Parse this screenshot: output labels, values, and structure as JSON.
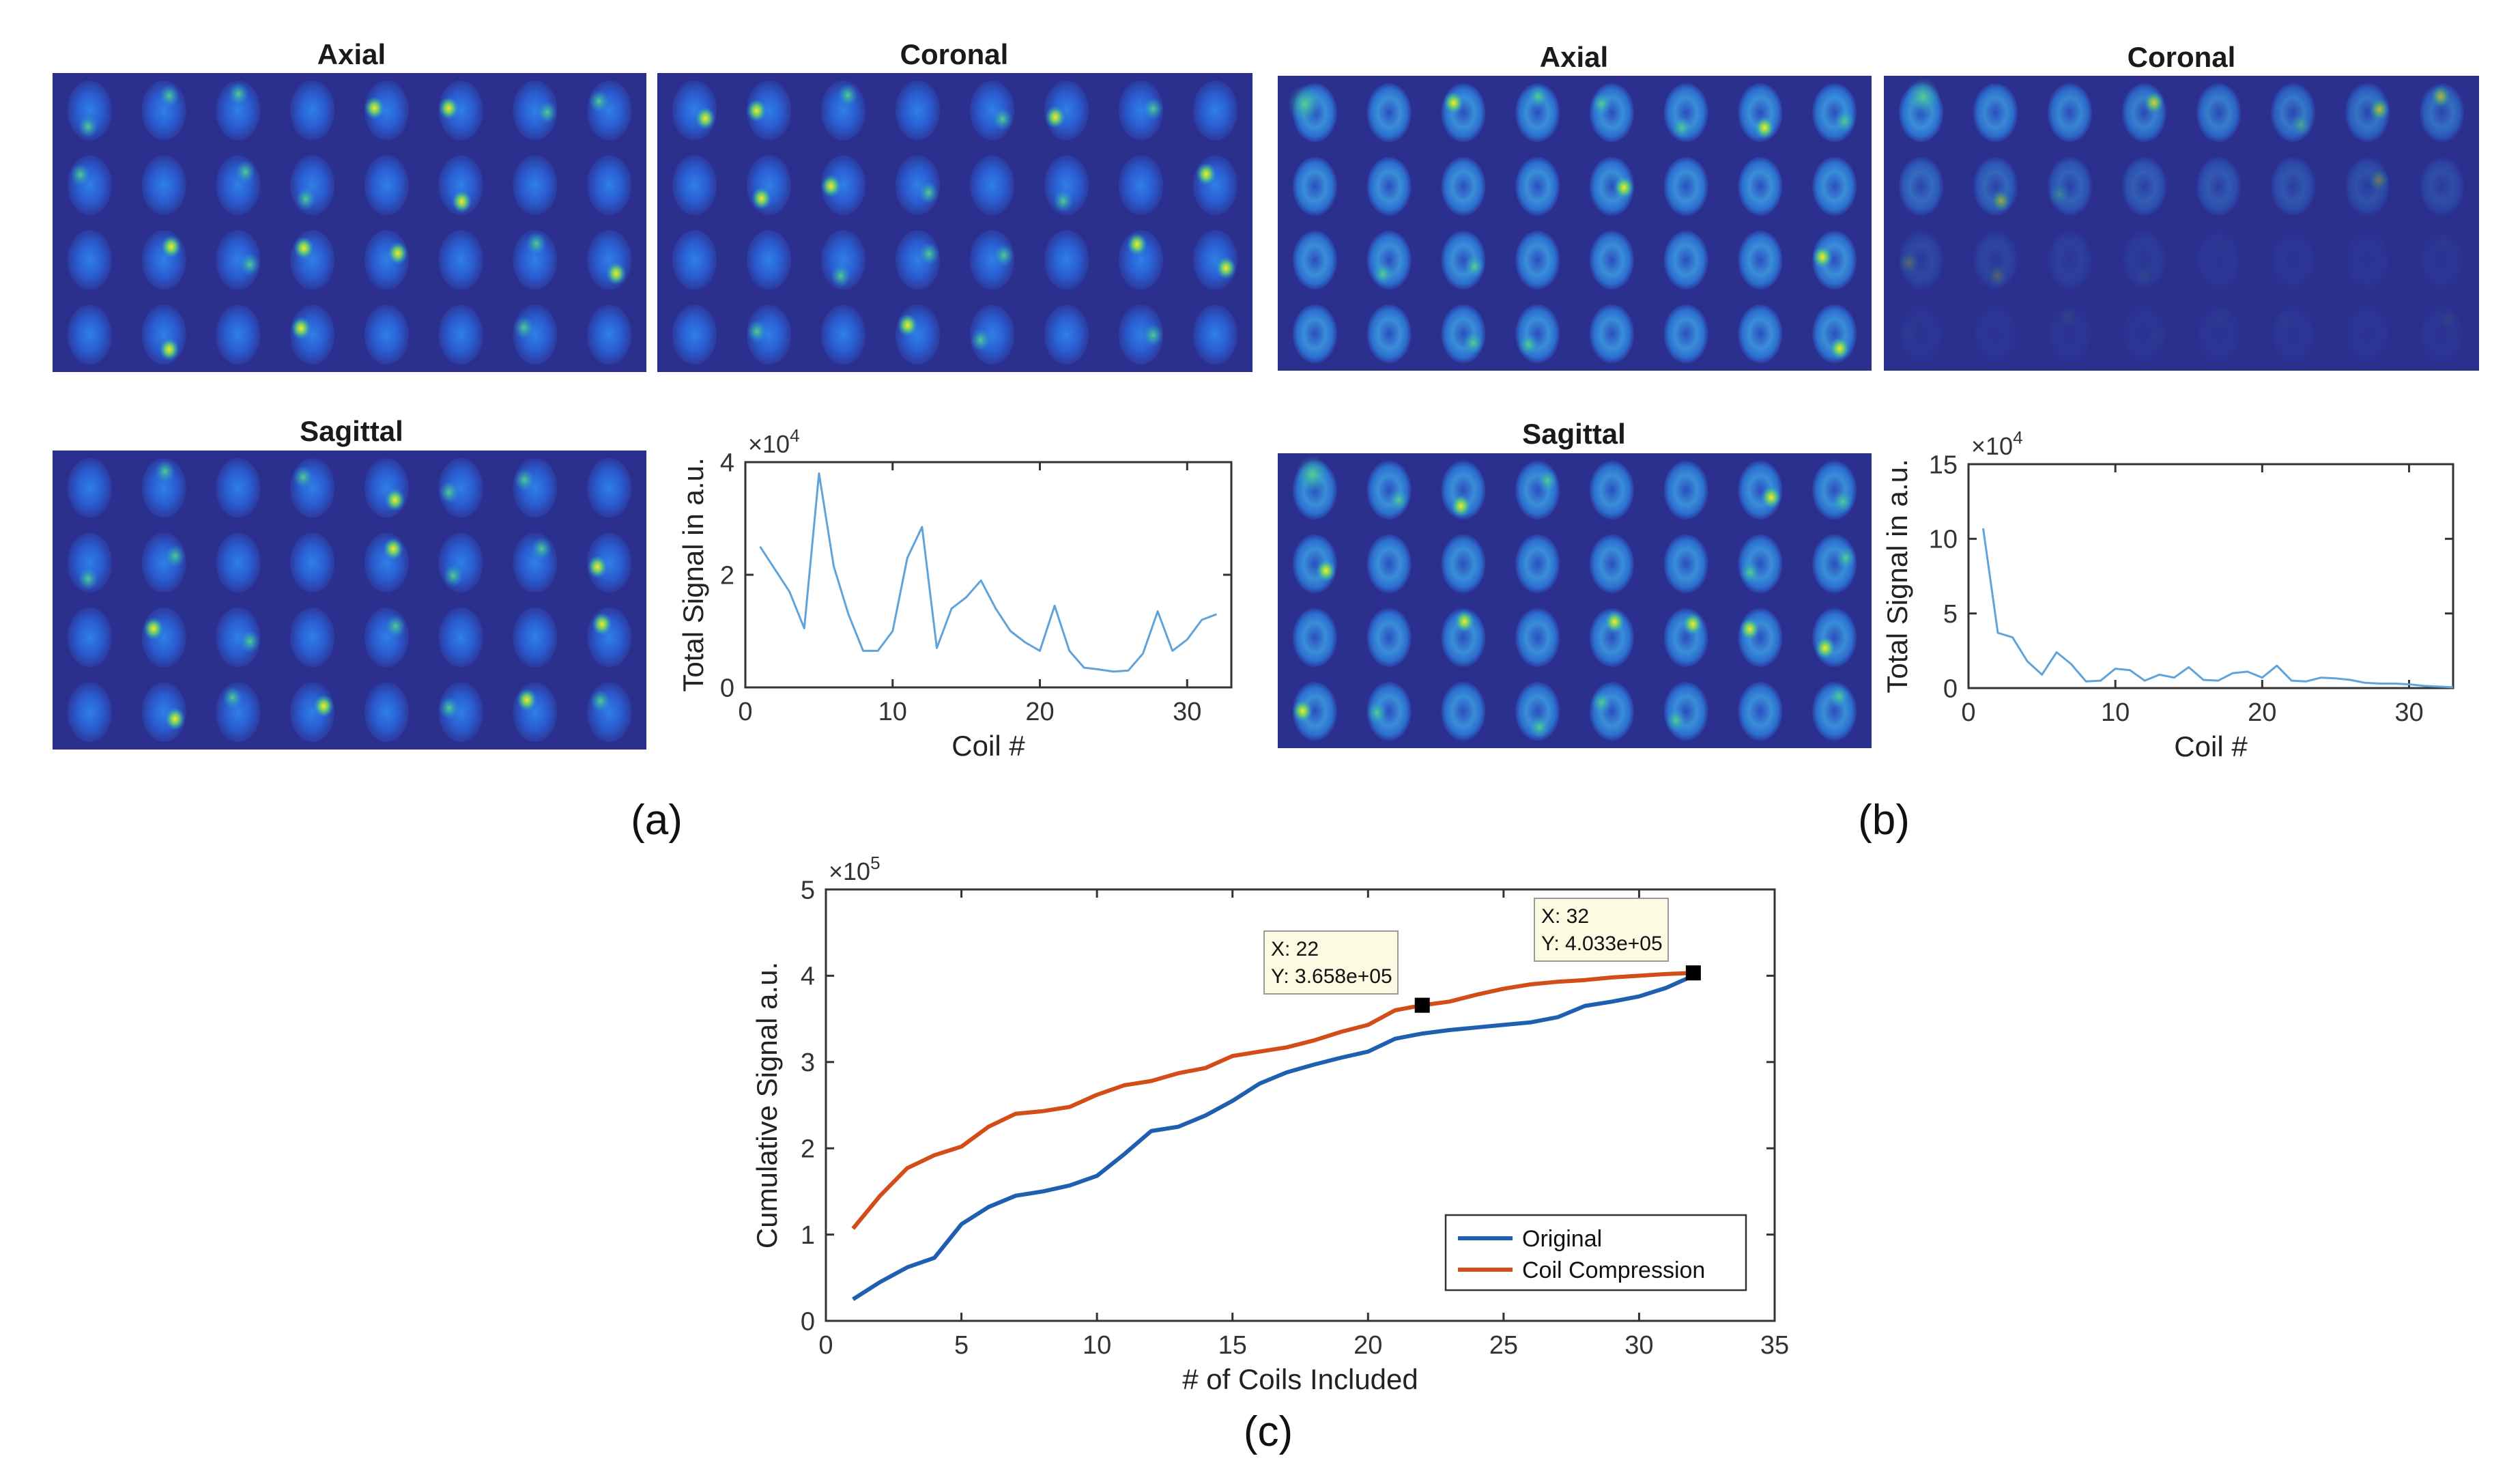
{
  "colors": {
    "mri_background": "#2b2f8e",
    "series_original": "#1f5fb0",
    "series_coil_compression": "#d24d17",
    "small_plot_line": "#61a3d9"
  },
  "panel_a": {
    "caption": "(a)",
    "axial": {
      "title": "Axial"
    },
    "coronal": {
      "title": "Coronal"
    },
    "sagittal": {
      "title": "Sagittal"
    },
    "chart_data": {
      "type": "line",
      "xlabel": "Coil #",
      "ylabel": "Total Signal in a.u.",
      "y_exponent": "×10",
      "y_exponent_power": "4",
      "xlim": [
        0,
        33
      ],
      "ylim": [
        0,
        4
      ],
      "xticks": [
        0,
        10,
        20,
        30
      ],
      "yticks": [
        0,
        2,
        4
      ],
      "series": [
        {
          "x": [
            1,
            2,
            3,
            4,
            5,
            6,
            7,
            8,
            9,
            10,
            11,
            12,
            13,
            14,
            15,
            16,
            17,
            18,
            19,
            20,
            21,
            22,
            23,
            24,
            25,
            26,
            27,
            28,
            29,
            30,
            31,
            32
          ],
          "y": [
            2.5,
            2.1,
            1.7,
            1.05,
            3.8,
            2.15,
            1.3,
            0.65,
            0.65,
            1.0,
            2.3,
            2.85,
            0.7,
            1.4,
            1.6,
            1.9,
            1.4,
            1.0,
            0.8,
            0.65,
            1.45,
            0.65,
            0.35,
            0.32,
            0.28,
            0.3,
            0.6,
            1.35,
            0.65,
            0.85,
            1.2,
            1.3
          ]
        }
      ]
    }
  },
  "panel_b": {
    "caption": "(b)",
    "axial": {
      "title": "Axial"
    },
    "coronal": {
      "title": "Coronal"
    },
    "sagittal": {
      "title": "Sagittal"
    },
    "chart_data": {
      "type": "line",
      "xlabel": "Coil #",
      "ylabel": "Total Signal in a.u.",
      "y_exponent": "×10",
      "y_exponent_power": "4",
      "xlim": [
        0,
        33
      ],
      "ylim": [
        0,
        15
      ],
      "xticks": [
        0,
        10,
        20,
        30
      ],
      "yticks": [
        0,
        5,
        10,
        15
      ],
      "series": [
        {
          "x": [
            1,
            2,
            3,
            4,
            5,
            6,
            7,
            8,
            9,
            10,
            11,
            12,
            13,
            14,
            15,
            16,
            17,
            18,
            19,
            20,
            21,
            22,
            23,
            24,
            25,
            26,
            27,
            28,
            29,
            30,
            31,
            32,
            33
          ],
          "y": [
            10.7,
            3.7,
            3.4,
            1.8,
            0.9,
            2.4,
            1.6,
            0.45,
            0.5,
            1.3,
            1.2,
            0.5,
            0.9,
            0.7,
            1.4,
            0.55,
            0.5,
            1.0,
            1.1,
            0.7,
            1.5,
            0.5,
            0.45,
            0.7,
            0.65,
            0.55,
            0.35,
            0.3,
            0.3,
            0.25,
            0.15,
            0.1,
            0.05
          ]
        }
      ]
    }
  },
  "panel_c": {
    "caption": "(c)",
    "chart_data": {
      "type": "line",
      "xlabel": "# of Coils Included",
      "ylabel": "Cumulative Signal a.u.",
      "y_exponent": "×10",
      "y_exponent_power": "5",
      "xlim": [
        0,
        35
      ],
      "ylim": [
        0,
        5
      ],
      "xticks": [
        0,
        5,
        10,
        15,
        20,
        25,
        30,
        35
      ],
      "yticks": [
        0,
        1,
        2,
        3,
        4,
        5
      ],
      "legend_position": "bottom-right",
      "series": [
        {
          "name": "Original",
          "x": [
            1,
            2,
            3,
            4,
            5,
            6,
            7,
            8,
            9,
            10,
            11,
            12,
            13,
            14,
            15,
            16,
            17,
            18,
            19,
            20,
            21,
            22,
            23,
            24,
            25,
            26,
            27,
            28,
            29,
            30,
            31,
            32
          ],
          "y": [
            0.25,
            0.45,
            0.62,
            0.73,
            1.12,
            1.32,
            1.45,
            1.5,
            1.57,
            1.68,
            1.93,
            2.2,
            2.25,
            2.38,
            2.55,
            2.75,
            2.88,
            2.97,
            3.05,
            3.12,
            3.27,
            3.33,
            3.37,
            3.4,
            3.43,
            3.46,
            3.52,
            3.65,
            3.7,
            3.76,
            3.86,
            4.0
          ]
        },
        {
          "name": "Coil Compression",
          "x": [
            1,
            2,
            3,
            4,
            5,
            6,
            7,
            8,
            9,
            10,
            11,
            12,
            13,
            14,
            15,
            16,
            17,
            18,
            19,
            20,
            21,
            22,
            23,
            24,
            25,
            26,
            27,
            28,
            29,
            30,
            31,
            32
          ],
          "y": [
            1.07,
            1.45,
            1.77,
            1.92,
            2.02,
            2.25,
            2.4,
            2.43,
            2.48,
            2.62,
            2.73,
            2.78,
            2.87,
            2.93,
            3.07,
            3.12,
            3.17,
            3.25,
            3.35,
            3.43,
            3.6,
            3.658,
            3.7,
            3.78,
            3.85,
            3.9,
            3.93,
            3.95,
            3.98,
            4.0,
            4.02,
            4.033
          ]
        }
      ],
      "datatips": [
        {
          "x": 22,
          "y": 3.658,
          "x_text": "X: 22",
          "y_text": "Y: 3.658e+05"
        },
        {
          "x": 32,
          "y": 4.033,
          "x_text": "X: 32",
          "y_text": "Y: 4.033e+05"
        }
      ]
    }
  }
}
